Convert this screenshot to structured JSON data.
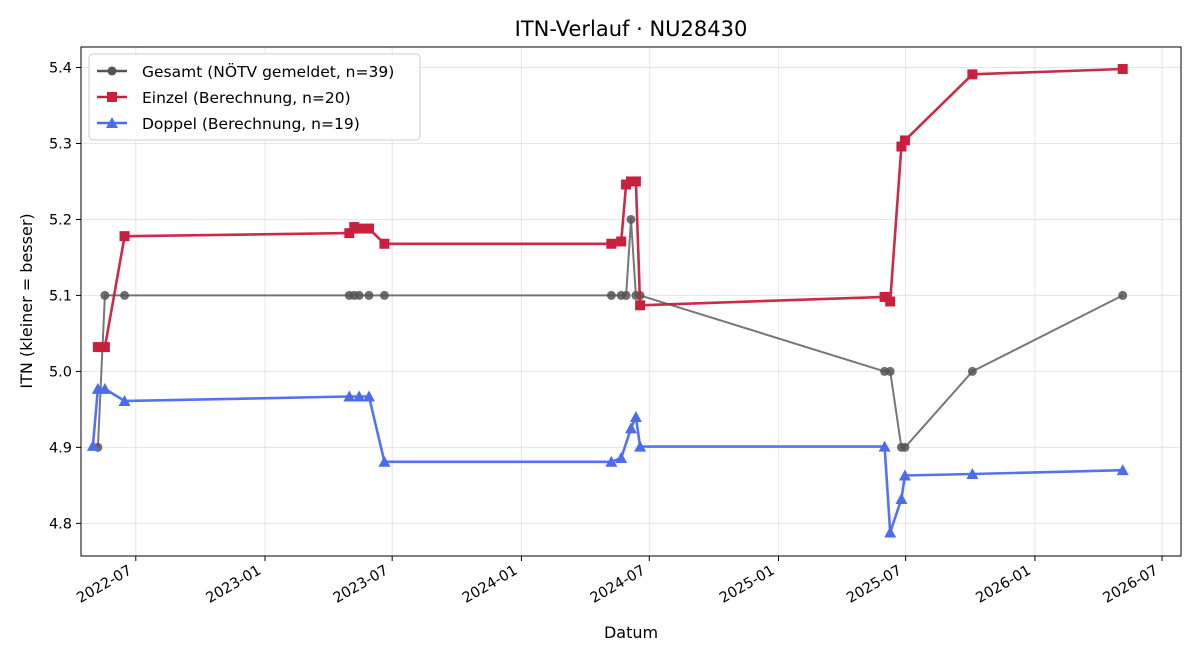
{
  "chart_data": {
    "type": "line",
    "title": "ITN-Verlauf · NU28430",
    "xlabel": "Datum",
    "ylabel": "ITN  (kleiner = besser)",
    "xlim": [
      "2022-04-14",
      "2026-07-28"
    ],
    "ylim": [
      4.757,
      5.427
    ],
    "grid": true,
    "legend_position": "top-left",
    "x_ticks": [
      "2022-07",
      "2023-01",
      "2023-07",
      "2024-01",
      "2024-07",
      "2025-01",
      "2025-07",
      "2026-01",
      "2026-07"
    ],
    "y_ticks": [
      4.8,
      4.9,
      5.0,
      5.1,
      5.2,
      5.3,
      5.4
    ],
    "series": [
      {
        "name": "Gesamt (NÖTV gemeldet, n=39)",
        "color": "#555555",
        "marker": "circle",
        "points": [
          [
            "2022-05-08",
            4.9
          ],
          [
            "2022-05-18",
            5.1
          ],
          [
            "2022-06-15",
            5.1
          ],
          [
            "2023-05-01",
            5.1
          ],
          [
            "2023-05-08",
            5.1
          ],
          [
            "2023-05-15",
            5.1
          ],
          [
            "2023-05-29",
            5.1
          ],
          [
            "2023-06-20",
            5.1
          ],
          [
            "2024-05-08",
            5.1
          ],
          [
            "2024-05-22",
            5.1
          ],
          [
            "2024-05-29",
            5.1
          ],
          [
            "2024-06-05",
            5.2
          ],
          [
            "2024-06-12",
            5.1
          ],
          [
            "2024-06-18",
            5.1
          ],
          [
            "2025-06-01",
            5.0
          ],
          [
            "2025-06-09",
            5.0
          ],
          [
            "2025-06-25",
            4.9
          ],
          [
            "2025-06-30",
            4.9
          ],
          [
            "2025-10-04",
            5.0
          ],
          [
            "2026-05-06",
            5.1
          ]
        ]
      },
      {
        "name": "Einzel (Berechnung, n=20)",
        "color": "#c9203e",
        "marker": "square",
        "points": [
          [
            "2022-05-08",
            5.032
          ],
          [
            "2022-05-18",
            5.032
          ],
          [
            "2022-06-15",
            5.178
          ],
          [
            "2023-05-01",
            5.182
          ],
          [
            "2023-05-08",
            5.19
          ],
          [
            "2023-05-15",
            5.188
          ],
          [
            "2023-05-29",
            5.188
          ],
          [
            "2023-06-20",
            5.168
          ],
          [
            "2024-05-08",
            5.168
          ],
          [
            "2024-05-22",
            5.171
          ],
          [
            "2024-05-29",
            5.246
          ],
          [
            "2024-06-05",
            5.25
          ],
          [
            "2024-06-12",
            5.25
          ],
          [
            "2024-06-18",
            5.087
          ],
          [
            "2025-06-01",
            5.098
          ],
          [
            "2025-06-09",
            5.092
          ],
          [
            "2025-06-25",
            5.296
          ],
          [
            "2025-06-30",
            5.304
          ],
          [
            "2025-10-04",
            5.391
          ],
          [
            "2026-05-06",
            5.398
          ]
        ]
      },
      {
        "name": "Doppel (Berechnung, n=19)",
        "color": "#4c6cf0",
        "marker": "triangle",
        "points": [
          [
            "2022-05-01",
            4.902
          ],
          [
            "2022-05-08",
            4.977
          ],
          [
            "2022-05-18",
            4.977
          ],
          [
            "2022-06-15",
            4.961
          ],
          [
            "2023-05-01",
            4.967
          ],
          [
            "2023-05-15",
            4.967
          ],
          [
            "2023-05-29",
            4.967
          ],
          [
            "2023-06-20",
            4.881
          ],
          [
            "2024-05-08",
            4.881
          ],
          [
            "2024-05-22",
            4.886
          ],
          [
            "2024-06-05",
            4.925
          ],
          [
            "2024-06-12",
            4.94
          ],
          [
            "2024-06-18",
            4.901
          ],
          [
            "2025-06-01",
            4.901
          ],
          [
            "2025-06-09",
            4.788
          ],
          [
            "2025-06-25",
            4.832
          ],
          [
            "2025-06-30",
            4.863
          ],
          [
            "2025-10-04",
            4.865
          ],
          [
            "2026-05-06",
            4.87
          ]
        ]
      }
    ]
  }
}
